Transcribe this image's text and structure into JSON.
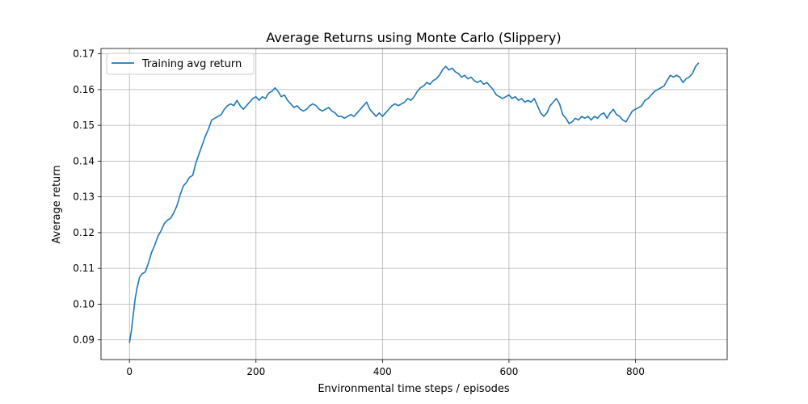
{
  "chart_data": {
    "type": "line",
    "title": "Average Returns using Monte Carlo (Slippery)",
    "xlabel": "Environmental time steps / episodes",
    "ylabel": "Average return",
    "xlim": [
      -45,
      945
    ],
    "ylim": [
      0.0845,
      0.1715
    ],
    "xticks": [
      0,
      200,
      400,
      600,
      800
    ],
    "yticks": [
      0.09,
      0.1,
      0.11,
      0.12,
      0.13,
      0.14,
      0.15,
      0.16,
      0.17
    ],
    "ytick_labels": [
      "0.09",
      "0.10",
      "0.11",
      "0.12",
      "0.13",
      "0.14",
      "0.15",
      "0.16",
      "0.17"
    ],
    "grid": true,
    "legend_position": "top-left",
    "series": [
      {
        "name": "Training avg return",
        "color": "#1f77b4",
        "points": [
          [
            0,
            0.0892
          ],
          [
            3,
            0.0925
          ],
          [
            6,
            0.097
          ],
          [
            9,
            0.1015
          ],
          [
            12,
            0.1045
          ],
          [
            16,
            0.1075
          ],
          [
            20,
            0.1085
          ],
          [
            25,
            0.109
          ],
          [
            30,
            0.1115
          ],
          [
            35,
            0.1145
          ],
          [
            40,
            0.1165
          ],
          [
            45,
            0.119
          ],
          [
            50,
            0.1205
          ],
          [
            55,
            0.1225
          ],
          [
            60,
            0.1235
          ],
          [
            65,
            0.124
          ],
          [
            70,
            0.1255
          ],
          [
            75,
            0.1275
          ],
          [
            80,
            0.1305
          ],
          [
            85,
            0.133
          ],
          [
            90,
            0.134
          ],
          [
            95,
            0.1355
          ],
          [
            100,
            0.136
          ],
          [
            105,
            0.1395
          ],
          [
            110,
            0.142
          ],
          [
            115,
            0.1445
          ],
          [
            120,
            0.147
          ],
          [
            125,
            0.149
          ],
          [
            130,
            0.1515
          ],
          [
            135,
            0.152
          ],
          [
            140,
            0.1525
          ],
          [
            145,
            0.153
          ],
          [
            150,
            0.1545
          ],
          [
            155,
            0.1555
          ],
          [
            160,
            0.156
          ],
          [
            165,
            0.1555
          ],
          [
            170,
            0.157
          ],
          [
            175,
            0.1555
          ],
          [
            180,
            0.1545
          ],
          [
            185,
            0.1555
          ],
          [
            190,
            0.1565
          ],
          [
            195,
            0.1575
          ],
          [
            200,
            0.158
          ],
          [
            205,
            0.157
          ],
          [
            210,
            0.158
          ],
          [
            215,
            0.1575
          ],
          [
            220,
            0.159
          ],
          [
            225,
            0.1595
          ],
          [
            230,
            0.1605
          ],
          [
            235,
            0.1595
          ],
          [
            240,
            0.158
          ],
          [
            245,
            0.1585
          ],
          [
            250,
            0.157
          ],
          [
            255,
            0.156
          ],
          [
            260,
            0.155
          ],
          [
            265,
            0.1555
          ],
          [
            270,
            0.1545
          ],
          [
            275,
            0.154
          ],
          [
            280,
            0.1545
          ],
          [
            285,
            0.1555
          ],
          [
            290,
            0.156
          ],
          [
            295,
            0.1555
          ],
          [
            300,
            0.1545
          ],
          [
            305,
            0.154
          ],
          [
            310,
            0.1545
          ],
          [
            315,
            0.155
          ],
          [
            320,
            0.154
          ],
          [
            325,
            0.1535
          ],
          [
            330,
            0.1525
          ],
          [
            335,
            0.1525
          ],
          [
            340,
            0.152
          ],
          [
            345,
            0.1525
          ],
          [
            350,
            0.153
          ],
          [
            355,
            0.1525
          ],
          [
            360,
            0.1535
          ],
          [
            365,
            0.1545
          ],
          [
            370,
            0.1555
          ],
          [
            375,
            0.1565
          ],
          [
            380,
            0.1545
          ],
          [
            385,
            0.1535
          ],
          [
            390,
            0.1525
          ],
          [
            395,
            0.1535
          ],
          [
            400,
            0.1525
          ],
          [
            405,
            0.1535
          ],
          [
            410,
            0.1545
          ],
          [
            415,
            0.1555
          ],
          [
            420,
            0.156
          ],
          [
            425,
            0.1555
          ],
          [
            430,
            0.156
          ],
          [
            435,
            0.1565
          ],
          [
            440,
            0.1575
          ],
          [
            445,
            0.157
          ],
          [
            450,
            0.158
          ],
          [
            455,
            0.1595
          ],
          [
            460,
            0.1605
          ],
          [
            465,
            0.161
          ],
          [
            470,
            0.162
          ],
          [
            475,
            0.1615
          ],
          [
            480,
            0.1625
          ],
          [
            485,
            0.163
          ],
          [
            490,
            0.164
          ],
          [
            495,
            0.1655
          ],
          [
            500,
            0.1665
          ],
          [
            505,
            0.1655
          ],
          [
            510,
            0.166
          ],
          [
            515,
            0.165
          ],
          [
            520,
            0.1645
          ],
          [
            525,
            0.1635
          ],
          [
            530,
            0.164
          ],
          [
            535,
            0.163
          ],
          [
            540,
            0.1635
          ],
          [
            545,
            0.1625
          ],
          [
            550,
            0.162
          ],
          [
            555,
            0.1625
          ],
          [
            560,
            0.1615
          ],
          [
            565,
            0.162
          ],
          [
            570,
            0.161
          ],
          [
            575,
            0.16
          ],
          [
            580,
            0.1585
          ],
          [
            585,
            0.158
          ],
          [
            590,
            0.1575
          ],
          [
            595,
            0.158
          ],
          [
            600,
            0.1585
          ],
          [
            605,
            0.1575
          ],
          [
            610,
            0.158
          ],
          [
            615,
            0.157
          ],
          [
            620,
            0.1575
          ],
          [
            625,
            0.1565
          ],
          [
            630,
            0.157
          ],
          [
            635,
            0.1565
          ],
          [
            640,
            0.1575
          ],
          [
            645,
            0.1555
          ],
          [
            650,
            0.1535
          ],
          [
            655,
            0.1525
          ],
          [
            660,
            0.1535
          ],
          [
            665,
            0.1555
          ],
          [
            670,
            0.1565
          ],
          [
            675,
            0.1575
          ],
          [
            680,
            0.156
          ],
          [
            685,
            0.153
          ],
          [
            690,
            0.152
          ],
          [
            695,
            0.1505
          ],
          [
            700,
            0.151
          ],
          [
            705,
            0.152
          ],
          [
            710,
            0.1515
          ],
          [
            715,
            0.1525
          ],
          [
            720,
            0.152
          ],
          [
            725,
            0.1525
          ],
          [
            730,
            0.1515
          ],
          [
            735,
            0.1525
          ],
          [
            740,
            0.152
          ],
          [
            745,
            0.153
          ],
          [
            750,
            0.1535
          ],
          [
            755,
            0.152
          ],
          [
            760,
            0.1535
          ],
          [
            765,
            0.1545
          ],
          [
            770,
            0.153
          ],
          [
            775,
            0.1525
          ],
          [
            780,
            0.1515
          ],
          [
            785,
            0.151
          ],
          [
            790,
            0.1525
          ],
          [
            795,
            0.154
          ],
          [
            800,
            0.1545
          ],
          [
            805,
            0.155
          ],
          [
            810,
            0.1555
          ],
          [
            815,
            0.157
          ],
          [
            820,
            0.1575
          ],
          [
            825,
            0.1585
          ],
          [
            830,
            0.1595
          ],
          [
            835,
            0.16
          ],
          [
            840,
            0.1605
          ],
          [
            845,
            0.161
          ],
          [
            850,
            0.1625
          ],
          [
            855,
            0.164
          ],
          [
            860,
            0.1635
          ],
          [
            865,
            0.164
          ],
          [
            870,
            0.1635
          ],
          [
            875,
            0.162
          ],
          [
            880,
            0.163
          ],
          [
            885,
            0.1635
          ],
          [
            890,
            0.1645
          ],
          [
            895,
            0.1665
          ],
          [
            900,
            0.1675
          ]
        ]
      }
    ]
  }
}
